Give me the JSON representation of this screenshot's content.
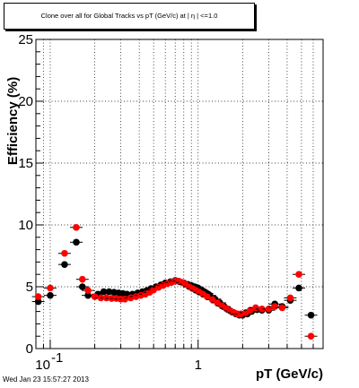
{
  "title": "Clone  over all for Global Tracks vs pT (GeV/c) at | η | <=1.0",
  "timestamp": "Wed Jan 23 15:57:27 2013",
  "chart_data": {
    "type": "scatter",
    "title": "Clone  over all for Global Tracks vs pT (GeV/c) at | η | <=1.0",
    "xlabel": "pT (GeV/c)",
    "ylabel": "Efficiency (%)",
    "xscale": "log",
    "xlim": [
      0.08,
      7.0
    ],
    "ylim": [
      0,
      25
    ],
    "grid": true,
    "x_tick_labels": [
      {
        "value": 0.1,
        "base": "10",
        "exp": "-1"
      },
      {
        "value": 1,
        "base": "1",
        "exp": ""
      }
    ],
    "y_ticks": [
      0,
      5,
      10,
      15,
      20,
      25
    ],
    "series": [
      {
        "color": "#000000",
        "points": [
          [
            0.083,
            3.8
          ],
          [
            0.1,
            4.3
          ],
          [
            0.125,
            6.8
          ],
          [
            0.15,
            8.6
          ],
          [
            0.165,
            5.0
          ],
          [
            0.18,
            4.3
          ],
          [
            0.21,
            4.4
          ],
          [
            0.23,
            4.6
          ],
          [
            0.25,
            4.6
          ],
          [
            0.27,
            4.55
          ],
          [
            0.29,
            4.5
          ],
          [
            0.31,
            4.45
          ],
          [
            0.33,
            4.4
          ],
          [
            0.36,
            4.4
          ],
          [
            0.39,
            4.5
          ],
          [
            0.42,
            4.6
          ],
          [
            0.45,
            4.7
          ],
          [
            0.48,
            4.85
          ],
          [
            0.52,
            5.0
          ],
          [
            0.56,
            5.15
          ],
          [
            0.6,
            5.3
          ],
          [
            0.65,
            5.4
          ],
          [
            0.7,
            5.5
          ],
          [
            0.75,
            5.4
          ],
          [
            0.8,
            5.3
          ],
          [
            0.85,
            5.2
          ],
          [
            0.9,
            5.1
          ],
          [
            0.95,
            5.0
          ],
          [
            1.0,
            4.9
          ],
          [
            1.05,
            4.75
          ],
          [
            1.1,
            4.6
          ],
          [
            1.15,
            4.45
          ],
          [
            1.2,
            4.3
          ],
          [
            1.3,
            4.0
          ],
          [
            1.4,
            3.7
          ],
          [
            1.5,
            3.4
          ],
          [
            1.6,
            3.15
          ],
          [
            1.7,
            2.95
          ],
          [
            1.8,
            2.8
          ],
          [
            1.9,
            2.7
          ],
          [
            2.0,
            2.7
          ],
          [
            2.15,
            2.8
          ],
          [
            2.3,
            3.0
          ],
          [
            2.5,
            3.15
          ],
          [
            2.7,
            3.1
          ],
          [
            3.0,
            3.1
          ],
          [
            3.3,
            3.6
          ],
          [
            3.7,
            3.4
          ],
          [
            4.2,
            3.9
          ],
          [
            4.8,
            4.9
          ],
          [
            5.8,
            2.7
          ]
        ]
      },
      {
        "color": "#ff0000",
        "points": [
          [
            0.083,
            4.2
          ],
          [
            0.1,
            4.9
          ],
          [
            0.125,
            7.7
          ],
          [
            0.15,
            9.8
          ],
          [
            0.165,
            5.6
          ],
          [
            0.18,
            4.7
          ],
          [
            0.2,
            4.2
          ],
          [
            0.22,
            4.1
          ],
          [
            0.24,
            4.1
          ],
          [
            0.26,
            4.05
          ],
          [
            0.28,
            4.05
          ],
          [
            0.3,
            4.0
          ],
          [
            0.32,
            4.0
          ],
          [
            0.35,
            4.1
          ],
          [
            0.38,
            4.2
          ],
          [
            0.41,
            4.3
          ],
          [
            0.44,
            4.4
          ],
          [
            0.47,
            4.55
          ],
          [
            0.5,
            4.75
          ],
          [
            0.54,
            4.95
          ],
          [
            0.58,
            5.1
          ],
          [
            0.62,
            5.25
          ],
          [
            0.66,
            5.35
          ],
          [
            0.7,
            5.45
          ],
          [
            0.74,
            5.45
          ],
          [
            0.78,
            5.35
          ],
          [
            0.82,
            5.2
          ],
          [
            0.87,
            5.0
          ],
          [
            0.92,
            4.85
          ],
          [
            0.97,
            4.7
          ],
          [
            1.02,
            4.55
          ],
          [
            1.08,
            4.4
          ],
          [
            1.15,
            4.2
          ],
          [
            1.25,
            3.95
          ],
          [
            1.35,
            3.7
          ],
          [
            1.45,
            3.45
          ],
          [
            1.55,
            3.25
          ],
          [
            1.65,
            3.05
          ],
          [
            1.75,
            2.9
          ],
          [
            1.85,
            2.8
          ],
          [
            1.95,
            2.8
          ],
          [
            2.1,
            2.9
          ],
          [
            2.25,
            3.1
          ],
          [
            2.45,
            3.3
          ],
          [
            2.7,
            3.2
          ],
          [
            3.0,
            3.2
          ],
          [
            3.3,
            3.4
          ],
          [
            3.7,
            3.3
          ],
          [
            4.2,
            4.1
          ],
          [
            4.8,
            6.0
          ],
          [
            5.8,
            1.0
          ]
        ]
      }
    ]
  }
}
